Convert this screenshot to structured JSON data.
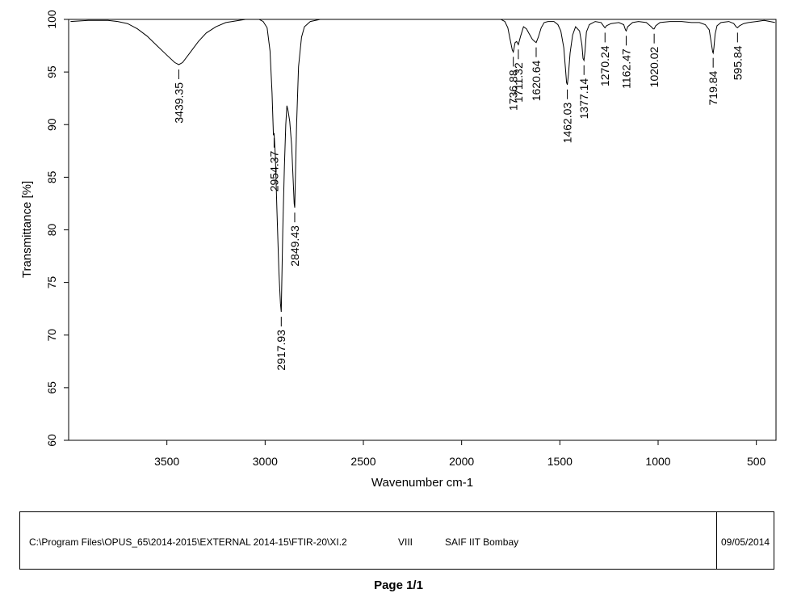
{
  "chart_data": {
    "type": "line",
    "title": "",
    "xlabel": "Wavenumber cm-1",
    "ylabel": "Transmittance [%]",
    "xlim": [
      4000,
      400
    ],
    "ylim": [
      60,
      100
    ],
    "x_ticks": [
      3500,
      3000,
      2500,
      2000,
      1500,
      1000,
      500
    ],
    "y_ticks": [
      60,
      65,
      70,
      75,
      80,
      85,
      90,
      95,
      100
    ],
    "grid": false,
    "series": [
      {
        "color": "#000000",
        "points": [
          [
            3990,
            99.8
          ],
          [
            3900,
            99.9
          ],
          [
            3800,
            99.9
          ],
          [
            3750,
            99.8
          ],
          [
            3700,
            99.6
          ],
          [
            3650,
            99.1
          ],
          [
            3600,
            98.4
          ],
          [
            3550,
            97.5
          ],
          [
            3500,
            96.6
          ],
          [
            3460,
            95.9
          ],
          [
            3439.35,
            95.7
          ],
          [
            3420,
            95.9
          ],
          [
            3380,
            96.9
          ],
          [
            3340,
            97.9
          ],
          [
            3300,
            98.7
          ],
          [
            3250,
            99.3
          ],
          [
            3200,
            99.7
          ],
          [
            3100,
            100.0
          ],
          [
            3030,
            100.0
          ],
          [
            3010,
            99.8
          ],
          [
            2990,
            99.2
          ],
          [
            2975,
            97.0
          ],
          [
            2965,
            93.0
          ],
          [
            2958,
            89.0
          ],
          [
            2954.37,
            89.2
          ],
          [
            2948,
            87.0
          ],
          [
            2940,
            82.0
          ],
          [
            2930,
            76.0
          ],
          [
            2922,
            73.0
          ],
          [
            2917.93,
            72.2
          ],
          [
            2910,
            80.0
          ],
          [
            2902,
            86.0
          ],
          [
            2895,
            90.0
          ],
          [
            2889,
            91.8
          ],
          [
            2883,
            91.3
          ],
          [
            2875,
            90.3
          ],
          [
            2865,
            88.0
          ],
          [
            2858,
            85.0
          ],
          [
            2852,
            82.5
          ],
          [
            2849.43,
            82.1
          ],
          [
            2845,
            86.0
          ],
          [
            2840,
            90.0
          ],
          [
            2830,
            95.5
          ],
          [
            2815,
            98.3
          ],
          [
            2800,
            99.3
          ],
          [
            2770,
            99.8
          ],
          [
            2720,
            100.0
          ],
          [
            2600,
            100.0
          ],
          [
            2400,
            100.0
          ],
          [
            2200,
            100.0
          ],
          [
            2000,
            100.0
          ],
          [
            1900,
            100.0
          ],
          [
            1800,
            100.0
          ],
          [
            1780,
            99.8
          ],
          [
            1765,
            99.2
          ],
          [
            1752,
            98.0
          ],
          [
            1742,
            97.1
          ],
          [
            1736.88,
            96.9
          ],
          [
            1728,
            97.8
          ],
          [
            1720,
            97.9
          ],
          [
            1711.32,
            97.6
          ],
          [
            1700,
            98.4
          ],
          [
            1685,
            99.3
          ],
          [
            1670,
            99.1
          ],
          [
            1655,
            98.6
          ],
          [
            1640,
            98.1
          ],
          [
            1628,
            97.9
          ],
          [
            1620.64,
            97.8
          ],
          [
            1610,
            98.3
          ],
          [
            1595,
            99.2
          ],
          [
            1580,
            99.7
          ],
          [
            1560,
            99.8
          ],
          [
            1530,
            99.8
          ],
          [
            1510,
            99.5
          ],
          [
            1495,
            98.9
          ],
          [
            1480,
            97.3
          ],
          [
            1470,
            95.0
          ],
          [
            1466,
            94.0
          ],
          [
            1462.03,
            93.8
          ],
          [
            1456,
            94.8
          ],
          [
            1448,
            96.8
          ],
          [
            1435,
            98.5
          ],
          [
            1420,
            99.3
          ],
          [
            1400,
            98.9
          ],
          [
            1388,
            97.6
          ],
          [
            1382,
            96.3
          ],
          [
            1377.14,
            96.1
          ],
          [
            1372,
            97.0
          ],
          [
            1365,
            98.8
          ],
          [
            1350,
            99.5
          ],
          [
            1320,
            99.8
          ],
          [
            1290,
            99.7
          ],
          [
            1275,
            99.3
          ],
          [
            1270.24,
            99.2
          ],
          [
            1262,
            99.4
          ],
          [
            1240,
            99.6
          ],
          [
            1200,
            99.7
          ],
          [
            1175,
            99.5
          ],
          [
            1166,
            99.0
          ],
          [
            1162.47,
            98.9
          ],
          [
            1155,
            99.3
          ],
          [
            1130,
            99.7
          ],
          [
            1100,
            99.8
          ],
          [
            1060,
            99.7
          ],
          [
            1035,
            99.3
          ],
          [
            1025,
            99.1
          ],
          [
            1020.02,
            99.1
          ],
          [
            1012,
            99.4
          ],
          [
            990,
            99.7
          ],
          [
            940,
            99.8
          ],
          [
            880,
            99.8
          ],
          [
            830,
            99.7
          ],
          [
            790,
            99.7
          ],
          [
            760,
            99.5
          ],
          [
            740,
            99.0
          ],
          [
            728,
            97.6
          ],
          [
            722,
            96.9
          ],
          [
            719.84,
            96.8
          ],
          [
            716,
            97.3
          ],
          [
            710,
            98.6
          ],
          [
            700,
            99.4
          ],
          [
            680,
            99.7
          ],
          [
            640,
            99.8
          ],
          [
            615,
            99.6
          ],
          [
            603,
            99.3
          ],
          [
            595.84,
            99.2
          ],
          [
            585,
            99.4
          ],
          [
            565,
            99.6
          ],
          [
            540,
            99.7
          ],
          [
            500,
            99.8
          ],
          [
            460,
            99.9
          ],
          [
            430,
            99.8
          ],
          [
            405,
            99.7
          ]
        ]
      }
    ],
    "peak_labels": [
      {
        "x": 3439.35,
        "y": 95.7,
        "label": "3439.35"
      },
      {
        "x": 2954.37,
        "y": 89.2,
        "label": "2954.37"
      },
      {
        "x": 2917.93,
        "y": 72.2,
        "label": "2917.93"
      },
      {
        "x": 2849.43,
        "y": 82.1,
        "label": "2849.43"
      },
      {
        "x": 1736.88,
        "y": 96.9,
        "label": "1736.88"
      },
      {
        "x": 1711.32,
        "y": 97.6,
        "label": "1711.32"
      },
      {
        "x": 1620.64,
        "y": 97.8,
        "label": "1620.64"
      },
      {
        "x": 1462.03,
        "y": 93.8,
        "label": "1462.03"
      },
      {
        "x": 1377.14,
        "y": 96.1,
        "label": "1377.14"
      },
      {
        "x": 1270.24,
        "y": 99.2,
        "label": "1270.24"
      },
      {
        "x": 1162.47,
        "y": 98.9,
        "label": "1162.47"
      },
      {
        "x": 1020.02,
        "y": 99.1,
        "label": "1020.02"
      },
      {
        "x": 719.84,
        "y": 96.8,
        "label": "719.84"
      },
      {
        "x": 595.84,
        "y": 99.2,
        "label": "595.84"
      }
    ]
  },
  "footer": {
    "path": "C:\\Program Files\\OPUS_65\\2014-2015\\EXTERNAL 2014-15\\FTIR-20\\XI.2",
    "code": "VIII",
    "institute": "SAIF IIT Bombay",
    "date": "09/05/2014"
  },
  "page_label": "Page 1/1"
}
